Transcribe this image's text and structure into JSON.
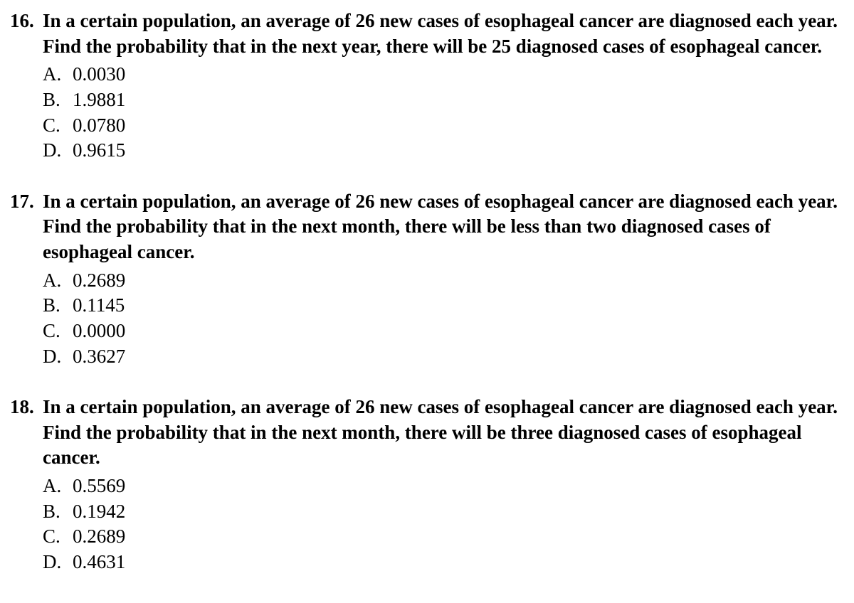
{
  "font": {
    "family": "Times New Roman",
    "question_size_pt": 20,
    "option_size_pt": 20,
    "question_weight": "bold",
    "option_weight": "normal",
    "color": "#000000"
  },
  "background_color": "#ffffff",
  "questions": [
    {
      "number": "16.",
      "prompt": "In a certain population, an average of 26 new cases of esophageal cancer are diagnosed each year.  Find the probability that in the next year, there will be 25 diagnosed cases of esophageal cancer.",
      "options": [
        {
          "letter": "A.",
          "text": "0.0030"
        },
        {
          "letter": "B.",
          "text": "1.9881"
        },
        {
          "letter": "C.",
          "text": "0.0780"
        },
        {
          "letter": "D.",
          "text": "0.9615"
        }
      ]
    },
    {
      "number": "17.",
      "prompt": "In a certain population, an average of 26 new cases of esophageal cancer are diagnosed each year.  Find the probability that in the next month, there will be less than two diagnosed cases of esophageal cancer.",
      "options": [
        {
          "letter": "A.",
          "text": "0.2689"
        },
        {
          "letter": "B.",
          "text": "0.1145"
        },
        {
          "letter": "C.",
          "text": "0.0000"
        },
        {
          "letter": "D.",
          "text": "0.3627"
        }
      ]
    },
    {
      "number": "18.",
      "prompt": "In a certain population, an average of 26 new cases of esophageal cancer are diagnosed each year.  Find the probability that in the next month, there will be three diagnosed cases of esophageal cancer.",
      "options": [
        {
          "letter": "A.",
          "text": "0.5569"
        },
        {
          "letter": "B.",
          "text": "0.1942"
        },
        {
          "letter": "C.",
          "text": "0.2689"
        },
        {
          "letter": "D.",
          "text": "0.4631"
        }
      ]
    }
  ]
}
